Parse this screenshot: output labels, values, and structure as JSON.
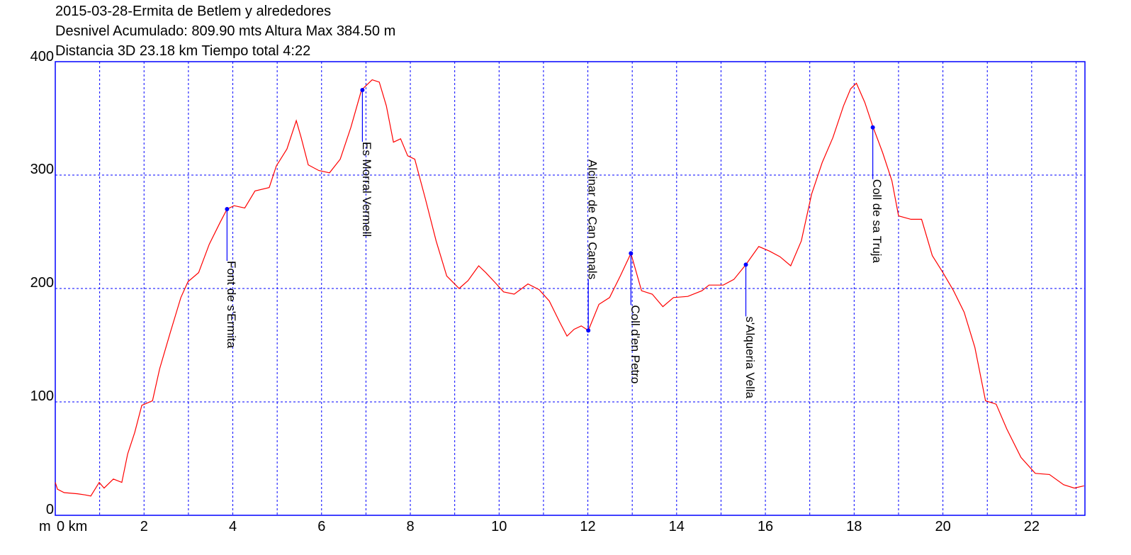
{
  "chart_data": {
    "type": "line",
    "title_lines": [
      "2015-03-28-Ermita de Betlem y alrededores",
      "Desnivel Acumulado: 809.90 mts  Altura Max 384.50 m",
      "Distancia 3D 23.18 km  Tiempo total 4:22"
    ],
    "y_unit": "m",
    "x": [
      0,
      0.05,
      0.2,
      0.5,
      0.67,
      0.8,
      0.99,
      1.1,
      1.31,
      1.5,
      1.63,
      1.79,
      1.95,
      2.19,
      2.35,
      2.59,
      2.83,
      2.99,
      3.23,
      3.47,
      3.71,
      3.87,
      4.03,
      4.27,
      4.5,
      4.82,
      4.98,
      5.22,
      5.43,
      5.54,
      5.7,
      5.94,
      6.18,
      6.42,
      6.66,
      6.9,
      7.14,
      7.3,
      7.46,
      7.62,
      7.78,
      7.94,
      8.1,
      8.34,
      8.58,
      8.82,
      9.1,
      9.3,
      9.54,
      9.7,
      9.94,
      10.1,
      10.34,
      10.65,
      10.9,
      11.13,
      11.37,
      11.53,
      11.69,
      11.85,
      12.01,
      12.25,
      12.49,
      12.73,
      12.97,
      13.21,
      13.45,
      13.69,
      13.93,
      14.25,
      14.57,
      14.73,
      15.05,
      15.29,
      15.56,
      15.85,
      16.09,
      16.33,
      16.57,
      16.81,
      17.04,
      17.28,
      17.52,
      17.76,
      17.92,
      18.05,
      18.24,
      18.42,
      18.64,
      18.85,
      19.0,
      19.28,
      19.52,
      19.76,
      20.0,
      20.24,
      20.48,
      20.72,
      20.96,
      21.2,
      21.44,
      21.76,
      22.08,
      22.4,
      22.72,
      22.96,
      23.18
    ],
    "values": [
      29,
      23,
      20,
      19,
      18,
      17,
      29,
      24,
      32,
      29,
      54,
      73,
      97,
      101,
      129,
      161,
      192,
      206,
      214,
      239,
      258,
      270,
      273,
      271,
      286,
      289,
      308,
      323,
      348,
      333,
      309,
      304,
      302,
      314,
      342,
      375,
      384,
      382,
      361,
      329,
      332,
      317,
      314,
      279,
      242,
      211,
      200,
      207,
      220,
      214,
      204,
      197,
      195,
      204,
      199,
      189,
      170,
      158,
      164,
      167,
      163,
      186,
      192,
      211,
      231,
      198,
      195,
      184,
      192,
      193,
      198,
      203,
      203,
      208,
      221,
      237,
      233,
      228,
      220,
      242,
      283,
      311,
      333,
      361,
      376,
      381,
      364,
      343,
      320,
      295,
      264,
      261,
      261,
      229,
      214,
      198,
      179,
      148,
      101,
      98,
      76,
      51,
      37,
      36,
      27,
      24,
      26
    ],
    "color": "#ff0000",
    "xlim": [
      0,
      23.2
    ],
    "ylim": [
      0,
      400
    ],
    "xticks": [
      {
        "value": 0,
        "label": "0 km"
      },
      2,
      4,
      6,
      8,
      10,
      12,
      14,
      16,
      18,
      20,
      22
    ],
    "xminor": [
      1,
      3,
      5,
      7,
      9,
      11,
      13,
      15,
      17,
      19,
      21,
      23
    ],
    "yticks": [
      0,
      100,
      200,
      300,
      400
    ],
    "grid": true,
    "annotations": [
      {
        "text": "Font de s'Ermita",
        "x": 3.87,
        "y": 270,
        "side": "below"
      },
      {
        "text": "Es Morral Vermell",
        "x": 6.92,
        "y": 375,
        "side": "below"
      },
      {
        "text": "Alcinar de Can Canals",
        "x": 12.01,
        "y": 163,
        "side": "above"
      },
      {
        "text": "Coll d'en Petro",
        "x": 12.97,
        "y": 231,
        "side": "below"
      },
      {
        "text": "s'Alqueria Vella",
        "x": 15.56,
        "y": 221,
        "side": "below"
      },
      {
        "text": "Coll de sa Truja",
        "x": 18.42,
        "y": 342,
        "side": "below"
      }
    ]
  }
}
